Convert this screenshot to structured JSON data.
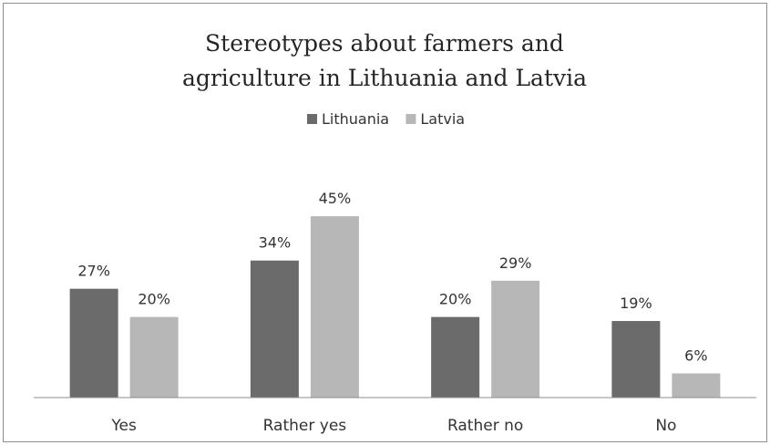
{
  "colors": {
    "Lithuania": "#6b6b6b",
    "Latvia": "#b7b7b7",
    "axis": "#8c8c8c",
    "frame": "#8c8c8c"
  },
  "chart_data": {
    "type": "bar",
    "title_line1": "Stereotypes about farmers and",
    "title_line2": "agriculture in Lithuania and Latvia",
    "categories": [
      "Yes",
      "Rather yes",
      "Rather no",
      "No"
    ],
    "series": [
      {
        "name": "Lithuania",
        "values": [
          27,
          34,
          20,
          19
        ],
        "labels": [
          "27%",
          "34%",
          "20%",
          "19%"
        ]
      },
      {
        "name": "Latvia",
        "values": [
          20,
          45,
          29,
          6
        ],
        "labels": [
          "20%",
          "45%",
          "29%",
          "6%"
        ]
      }
    ],
    "unit": "%",
    "legend_position": "top",
    "grid": false,
    "xlabel": "",
    "ylabel": "",
    "ylim": [
      0,
      45
    ]
  }
}
